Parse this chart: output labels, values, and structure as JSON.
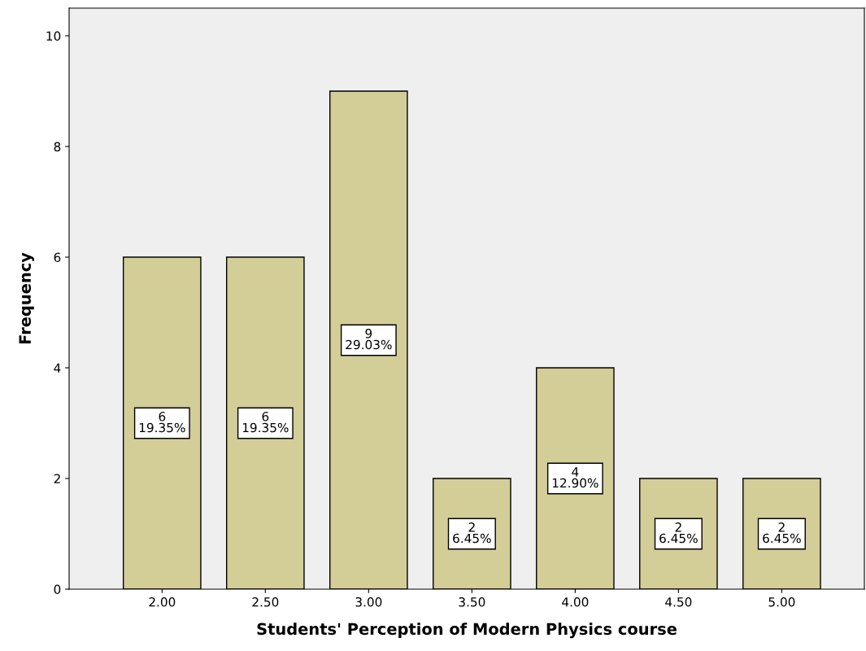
{
  "chart_data": {
    "type": "bar",
    "xlabel": "Students' Perception of Modern Physics course",
    "ylabel": "Frequency",
    "categories": [
      "2.00",
      "2.50",
      "3.00",
      "3.50",
      "4.00",
      "4.50",
      "5.00"
    ],
    "values": [
      6,
      6,
      9,
      2,
      4,
      2,
      2
    ],
    "value_labels": [
      "6\n19.35%",
      "6\n19.35%",
      "9\n29.03%",
      "2\n6.45%",
      "4\n12.90%",
      "2\n6.45%",
      "2\n6.45%"
    ],
    "color": "#d3cd98",
    "ylim": [
      0,
      10.5
    ],
    "yticks": [
      0,
      2,
      4,
      6,
      8,
      10
    ],
    "grid": false,
    "legend": false
  }
}
